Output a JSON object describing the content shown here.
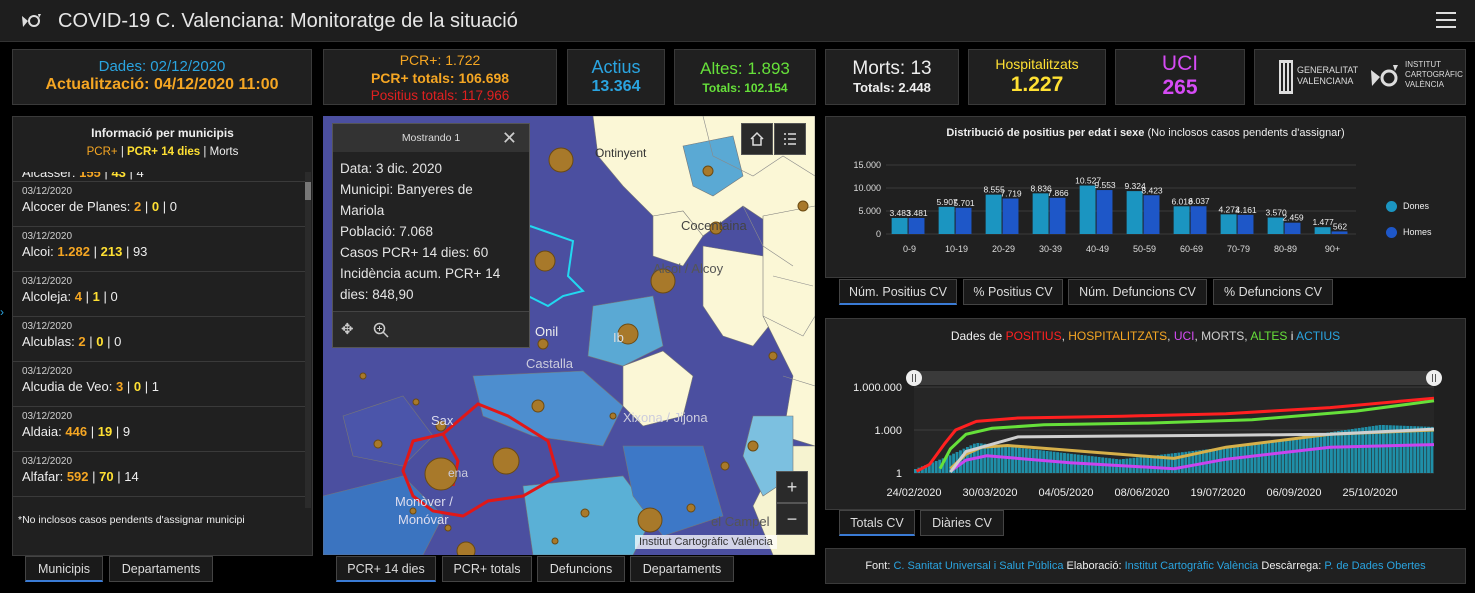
{
  "header": {
    "title": "COVID-19 C. Valenciana: Monitoratge de la situació"
  },
  "stats": {
    "dades": "Dades: 02/12/2020",
    "actualitzacio": "Actualització: 04/12/2020 11:00",
    "pcr": "PCR+: 1.722",
    "pcr_totals": "PCR+ totals: 106.698",
    "positius_totals": "Positius totals: 117.966",
    "actius_label": "Actius",
    "actius_value": "13.364",
    "altes": "Altes: 1.893",
    "altes_totals": "Totals: 102.154",
    "morts": "Morts: 13",
    "morts_totals": "Totals: 2.448",
    "hosp_label": "Hospitalitzats",
    "hosp_value": "1.227",
    "uci_label": "UCI",
    "uci_value": "265"
  },
  "logos": {
    "gv_line1": "GENERALITAT",
    "gv_line2": "VALENCIANA",
    "icv_line1": "INSTITUT",
    "icv_line2": "CARTOGRÀFIC",
    "icv_line3": "VALÈNCIA"
  },
  "municipis": {
    "title": "Informació per municipis",
    "legend_pcr": "PCR+",
    "legend_pcr14": "PCR+ 14 dies",
    "legend_morts": "Morts",
    "partial_row": {
      "name": "Alcàsser:",
      "pcr": "155",
      "pcr14": "43",
      "morts": "4"
    },
    "rows": [
      {
        "date": "03/12/2020",
        "name": "Alcocer de Planes:",
        "pcr": "2",
        "pcr14": "0",
        "morts": "0"
      },
      {
        "date": "03/12/2020",
        "name": "Alcoi:",
        "pcr": "1.282",
        "pcr14": "213",
        "morts": "93"
      },
      {
        "date": "03/12/2020",
        "name": "Alcoleja:",
        "pcr": "4",
        "pcr14": "1",
        "morts": "0"
      },
      {
        "date": "03/12/2020",
        "name": "Alcublas:",
        "pcr": "2",
        "pcr14": "0",
        "morts": "0"
      },
      {
        "date": "03/12/2020",
        "name": "Alcudia de Veo:",
        "pcr": "3",
        "pcr14": "0",
        "morts": "1"
      },
      {
        "date": "03/12/2020",
        "name": "Aldaia:",
        "pcr": "446",
        "pcr14": "19",
        "morts": "9"
      },
      {
        "date": "03/12/2020",
        "name": "Alfafar:",
        "pcr": "592",
        "pcr14": "70",
        "morts": "14"
      }
    ],
    "footnote": "*No inclosos casos pendents d'assignar municipi",
    "tabs": [
      "Municipis",
      "Departaments"
    ]
  },
  "map": {
    "popup_header": "Mostrando 1",
    "popup_lines": [
      "Data: 3 dic. 2020",
      "Municipi: Banyeres de",
      "Mariola",
      "Població: 7.068",
      "Casos PCR+ 14 dies: 60",
      "Incidència acum. PCR+ 14",
      "dies: 848,90"
    ],
    "labels": {
      "ontinyent": "Ontinyent",
      "cocentaina": "Cocentaina",
      "alcoi": "Alcoi / Alcoy",
      "castalla": "Castalla",
      "sax": "Sax",
      "xixona": "Xixona / Jijona",
      "monover": "Monòver /",
      "monovar": "Monóvar",
      "campello": "el Campel",
      "ibi": "Ib",
      "onil": "Onil",
      "villena": "ena"
    },
    "attribution": "Institut Cartogràfic València",
    "tabs": [
      "PCR+ 14 dies",
      "PCR+ totals",
      "Defuncions",
      "Departaments"
    ]
  },
  "age_chart": {
    "title": "Distribució de positius per edat i sexe",
    "subtitle": "(No inclosos casos pendents d'assignar)",
    "legend_dones": "Dones",
    "legend_homes": "Homes",
    "color_dones": "#1b95c1",
    "color_homes": "#1e57c8",
    "tabs": [
      "Núm. Positius CV",
      "% Positius CV",
      "Núm. Defuncions CV",
      "% Defuncions CV"
    ]
  },
  "chart_data": [
    {
      "type": "bar",
      "categories": [
        "0-9",
        "10-19",
        "20-29",
        "30-39",
        "40-49",
        "50-59",
        "60-69",
        "70-79",
        "80-89",
        "90+"
      ],
      "series": [
        {
          "name": "Dones",
          "values": [
            3483,
            5907,
            8555,
            8836,
            10527,
            9324,
            6018,
            4272,
            3570,
            1477
          ],
          "labels": [
            "3.483",
            "5.907",
            "8.555",
            "8.836",
            "10.527",
            "9.324",
            "6.018",
            "4.272",
            "3.570",
            "1.477"
          ]
        },
        {
          "name": "Homes",
          "values": [
            3481,
            5701,
            7719,
            7866,
            9553,
            8423,
            6037,
            4161,
            2459,
            562
          ],
          "labels": [
            "3.481",
            "5.701",
            "7.719",
            "7.866",
            "9.553",
            "8.423",
            "6.037",
            "4.161",
            "2.459",
            "562"
          ]
        }
      ],
      "yticks": [
        "15.000",
        "10.000",
        "5.000",
        "0"
      ],
      "ylim": [
        0,
        15000
      ]
    },
    {
      "type": "line",
      "title_prefix": "Dades de",
      "series_labels": [
        {
          "text": "POSITIUS",
          "color": "#ff2020"
        },
        {
          "text": "HOSPITALITZATS",
          "color": "#f5a623"
        },
        {
          "text": "UCI",
          "color": "#d64bf5"
        },
        {
          "text": "MORTS",
          "color": "#cfcfcf"
        },
        {
          "text": "ALTES",
          "color": "#66e03a"
        },
        {
          "text": "i",
          "color": "#eeeeee"
        },
        {
          "text": "ACTIUS",
          "color": "#2aa4e0"
        }
      ],
      "yticks": [
        "1.000.000",
        "1.000",
        "1"
      ],
      "xticks": [
        "24/02/2020",
        "30/03/2020",
        "04/05/2020",
        "08/06/2020",
        "19/07/2020",
        "06/09/2020",
        "25/10/2020"
      ],
      "tabs": [
        "Totals CV",
        "Diàries CV"
      ]
    }
  ],
  "footer": {
    "font_label": "Font:",
    "font_link": "C. Sanitat Universal i Salut Pública",
    "elab_label": "Elaboració:",
    "elab_link": "Institut Cartogràfic València",
    "desc_label": "Descàrrega:",
    "desc_link": "P. de Dades Obertes"
  }
}
